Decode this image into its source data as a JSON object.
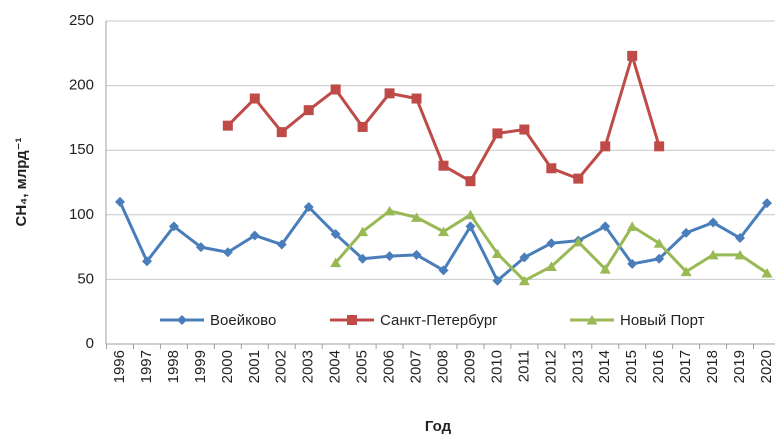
{
  "chart_data": {
    "type": "line",
    "xlabel": "Год",
    "ylabel": "CH₄,  млрд⁻¹",
    "categories": [
      "1996",
      "1997",
      "1998",
      "1999",
      "2000",
      "2001",
      "2002",
      "2003",
      "2004",
      "2005",
      "2006",
      "2007",
      "2008",
      "2009",
      "2010",
      "2011",
      "2012",
      "2013",
      "2014",
      "2015",
      "2016",
      "2017",
      "2018",
      "2019",
      "2020"
    ],
    "series": [
      {
        "name": "Воейково",
        "color": "#4a7ebb",
        "marker": "diamond",
        "values": [
          110,
          64,
          91,
          75,
          71,
          84,
          77,
          106,
          85,
          66,
          68,
          69,
          57,
          91,
          49,
          67,
          78,
          80,
          91,
          62,
          66,
          86,
          94,
          82,
          109
        ]
      },
      {
        "name": "Санкт-Петербург",
        "color": "#be4b48",
        "marker": "square",
        "values": [
          null,
          null,
          null,
          null,
          169,
          190,
          164,
          181,
          197,
          168,
          194,
          190,
          138,
          126,
          163,
          166,
          136,
          128,
          153,
          223,
          153,
          null,
          null,
          null,
          null
        ]
      },
      {
        "name": "Новый Порт",
        "color": "#98b954",
        "marker": "triangle",
        "values": [
          null,
          null,
          null,
          null,
          null,
          null,
          null,
          null,
          63,
          87,
          103,
          98,
          87,
          100,
          70,
          49,
          60,
          79,
          58,
          91,
          78,
          56,
          69,
          69,
          55
        ]
      }
    ],
    "ylim": [
      0,
      250
    ],
    "yticks": [
      0,
      50,
      100,
      150,
      200,
      250
    ],
    "grid": true
  }
}
